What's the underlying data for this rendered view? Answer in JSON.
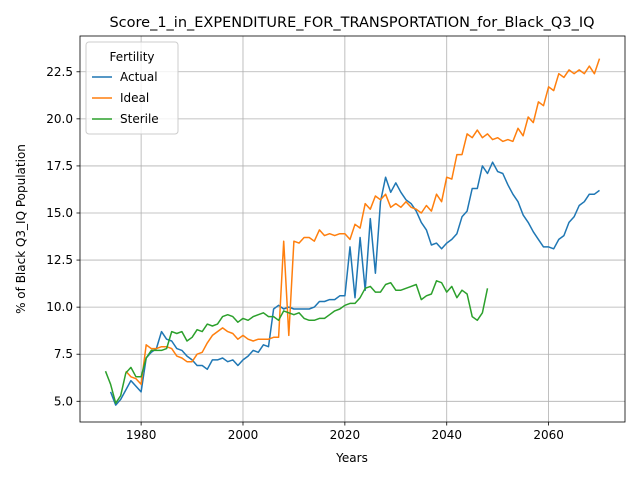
{
  "chart_data": {
    "type": "line",
    "title": "Score_1_in_EXPENDITURE_FOR_TRANSPORTATION_for_Black_Q3_IQ",
    "xlabel": "Years",
    "ylabel": "% of Black Q3_IQ Population",
    "xlim": [
      1968,
      2075
    ],
    "ylim": [
      3.9,
      24.4
    ],
    "xticks": [
      1980,
      2000,
      2020,
      2040,
      2060
    ],
    "yticks": [
      5.0,
      7.5,
      10.0,
      12.5,
      15.0,
      17.5,
      20.0,
      22.5
    ],
    "grid": true,
    "legend": {
      "title": "Fertility",
      "position": "top-left"
    },
    "series": [
      {
        "name": "Actual",
        "color": "#1f77b4",
        "x": [
          1974,
          1975,
          1976,
          1977,
          1978,
          1979,
          1980,
          1981,
          1982,
          1983,
          1984,
          1985,
          1986,
          1987,
          1988,
          1989,
          1990,
          1991,
          1992,
          1993,
          1994,
          1995,
          1996,
          1997,
          1998,
          1999,
          2000,
          2001,
          2002,
          2003,
          2004,
          2005,
          2006,
          2007,
          2008,
          2009,
          2010,
          2011,
          2012,
          2013,
          2014,
          2015,
          2016,
          2017,
          2018,
          2019,
          2020,
          2021,
          2022,
          2023,
          2024,
          2025,
          2026,
          2027,
          2028,
          2029,
          2030,
          2031,
          2032,
          2033,
          2034,
          2035,
          2036,
          2037,
          2038,
          2039,
          2040,
          2041,
          2042,
          2043,
          2044,
          2045,
          2046,
          2047,
          2048,
          2049,
          2050,
          2051,
          2052,
          2053,
          2054,
          2055,
          2056,
          2057,
          2058,
          2059,
          2060,
          2061,
          2062,
          2063,
          2064,
          2065,
          2066,
          2067,
          2068,
          2069,
          2070
        ],
        "values": [
          5.5,
          4.8,
          5.1,
          5.6,
          6.1,
          5.8,
          5.5,
          7.3,
          7.6,
          7.8,
          8.7,
          8.3,
          8.2,
          7.8,
          7.7,
          7.4,
          7.2,
          6.9,
          6.9,
          6.7,
          7.2,
          7.2,
          7.3,
          7.1,
          7.2,
          6.9,
          7.2,
          7.4,
          7.7,
          7.6,
          8.0,
          7.9,
          9.9,
          10.1,
          9.9,
          10.0,
          9.9,
          9.9,
          9.9,
          9.9,
          10.0,
          10.3,
          10.3,
          10.4,
          10.4,
          10.6,
          10.6,
          13.2,
          10.5,
          13.7,
          10.9,
          14.7,
          11.8,
          15.6,
          16.9,
          16.1,
          16.6,
          16.1,
          15.7,
          15.5,
          15.1,
          14.5,
          14.1,
          13.3,
          13.4,
          13.1,
          13.4,
          13.6,
          13.9,
          14.8,
          15.1,
          16.3,
          16.3,
          17.5,
          17.1,
          17.7,
          17.2,
          17.1,
          16.5,
          16.0,
          15.6,
          14.9,
          14.5,
          14.0,
          13.6,
          13.2,
          13.2,
          13.1,
          13.6,
          13.8,
          14.5,
          14.8,
          15.4,
          15.6,
          16.0,
          16.0,
          16.2
        ]
      },
      {
        "name": "Ideal",
        "color": "#ff7f0e",
        "x": [
          1977,
          1978,
          1979,
          1980,
          1981,
          1982,
          1983,
          1984,
          1985,
          1986,
          1987,
          1988,
          1989,
          1990,
          1991,
          1992,
          1993,
          1994,
          1995,
          1996,
          1997,
          1998,
          1999,
          2000,
          2001,
          2002,
          2003,
          2004,
          2005,
          2006,
          2007,
          2008,
          2009,
          2010,
          2011,
          2012,
          2013,
          2014,
          2015,
          2016,
          2017,
          2018,
          2019,
          2020,
          2021,
          2022,
          2023,
          2024,
          2025,
          2026,
          2027,
          2028,
          2029,
          2030,
          2031,
          2032,
          2033,
          2034,
          2035,
          2036,
          2037,
          2038,
          2039,
          2040,
          2041,
          2042,
          2043,
          2044,
          2045,
          2046,
          2047,
          2048,
          2049,
          2050,
          2051,
          2052,
          2053,
          2054,
          2055,
          2056,
          2057,
          2058,
          2059,
          2060,
          2061,
          2062,
          2063,
          2064,
          2065,
          2066,
          2067,
          2068,
          2069,
          2070
        ],
        "values": [
          6.6,
          6.3,
          6.2,
          5.9,
          8.0,
          7.8,
          7.8,
          7.9,
          7.9,
          7.8,
          7.4,
          7.3,
          7.1,
          7.1,
          7.5,
          7.6,
          8.1,
          8.5,
          8.7,
          8.9,
          8.7,
          8.6,
          8.3,
          8.5,
          8.3,
          8.2,
          8.3,
          8.3,
          8.3,
          8.4,
          8.4,
          13.5,
          8.5,
          13.5,
          13.4,
          13.7,
          13.7,
          13.5,
          14.1,
          13.8,
          13.9,
          13.8,
          13.9,
          13.9,
          13.6,
          14.4,
          14.2,
          15.5,
          15.2,
          15.9,
          15.7,
          16.0,
          15.3,
          15.5,
          15.3,
          15.6,
          15.3,
          15.2,
          15.0,
          15.4,
          15.1,
          16.0,
          15.6,
          16.9,
          16.8,
          18.1,
          18.1,
          19.2,
          19.0,
          19.4,
          19.0,
          19.2,
          18.9,
          19.0,
          18.8,
          18.9,
          18.8,
          19.5,
          19.1,
          20.1,
          19.8,
          20.9,
          20.7,
          21.7,
          21.5,
          22.4,
          22.2,
          22.6,
          22.4,
          22.6,
          22.4,
          22.8,
          22.4,
          23.2
        ]
      },
      {
        "name": "Sterile",
        "color": "#2ca02c",
        "x": [
          1973,
          1974,
          1975,
          1976,
          1977,
          1978,
          1979,
          1980,
          1981,
          1982,
          1983,
          1984,
          1985,
          1986,
          1987,
          1988,
          1989,
          1990,
          1991,
          1992,
          1993,
          1994,
          1995,
          1996,
          1997,
          1998,
          1999,
          2000,
          2001,
          2002,
          2003,
          2004,
          2005,
          2006,
          2007,
          2008,
          2009,
          2010,
          2011,
          2012,
          2013,
          2014,
          2015,
          2016,
          2017,
          2018,
          2019,
          2020,
          2021,
          2022,
          2023,
          2024,
          2025,
          2026,
          2027,
          2028,
          2029,
          2030,
          2031,
          2032,
          2033,
          2034,
          2035,
          2036,
          2037,
          2038,
          2039,
          2040,
          2041,
          2042,
          2043,
          2044,
          2045,
          2046,
          2047,
          2048
        ],
        "values": [
          6.6,
          5.9,
          4.9,
          5.3,
          6.5,
          6.8,
          6.3,
          6.3,
          7.3,
          7.7,
          7.7,
          7.7,
          7.8,
          8.7,
          8.6,
          8.7,
          8.2,
          8.4,
          8.8,
          8.7,
          9.1,
          9.0,
          9.1,
          9.5,
          9.6,
          9.5,
          9.2,
          9.4,
          9.3,
          9.5,
          9.6,
          9.7,
          9.5,
          9.5,
          9.3,
          9.8,
          9.7,
          9.6,
          9.7,
          9.4,
          9.3,
          9.3,
          9.4,
          9.4,
          9.6,
          9.8,
          9.9,
          10.1,
          10.2,
          10.2,
          10.5,
          11.0,
          11.1,
          10.8,
          10.8,
          11.2,
          11.3,
          10.9,
          10.9,
          11.0,
          11.1,
          11.2,
          10.4,
          10.6,
          10.7,
          11.4,
          11.3,
          10.8,
          11.1,
          10.5,
          10.9,
          10.7,
          9.5,
          9.3,
          9.7,
          11.0
        ]
      }
    ]
  }
}
